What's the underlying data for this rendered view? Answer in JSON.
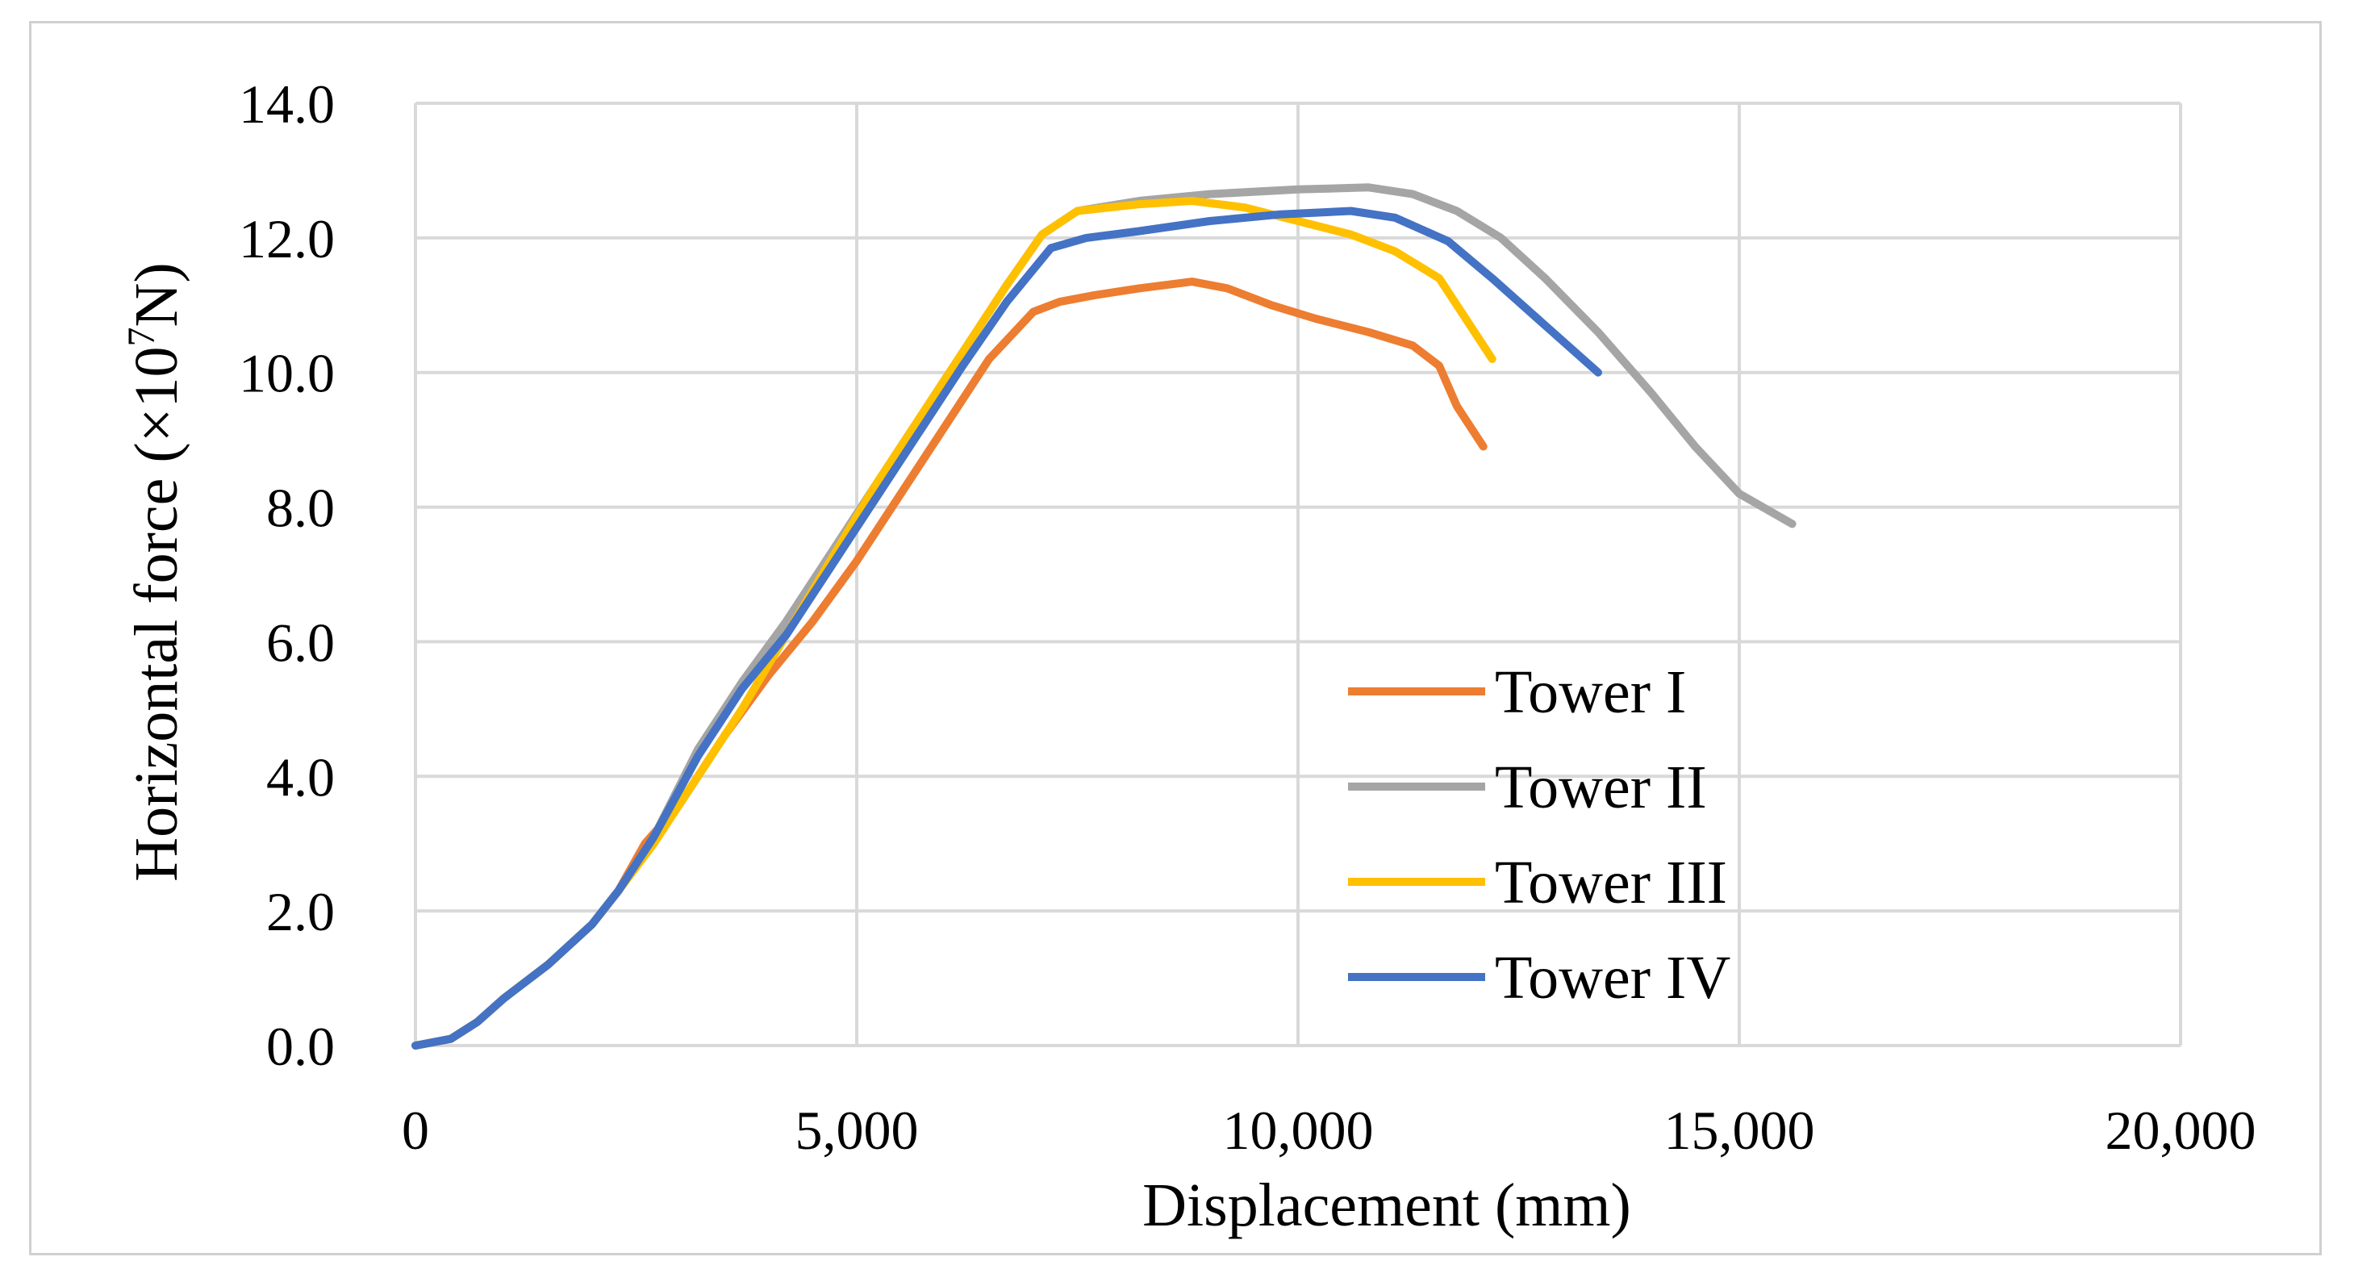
{
  "chart_data": {
    "type": "line",
    "title": "",
    "xlabel": "Displacement (mm)",
    "ylabel_prefix": "Horizontal force (×10",
    "ylabel_sup": "7",
    "ylabel_suffix": "N)",
    "xlim": [
      0,
      20000
    ],
    "ylim": [
      0,
      14
    ],
    "x_ticks": [
      0,
      5000,
      10000,
      15000,
      20000
    ],
    "x_tick_labels": [
      "0",
      "5,000",
      "10,000",
      "15,000",
      "20,000"
    ],
    "y_ticks": [
      0,
      2,
      4,
      6,
      8,
      10,
      12,
      14
    ],
    "y_tick_labels": [
      "0.0",
      "2.0",
      "4.0",
      "6.0",
      "8.0",
      "10.0",
      "12.0",
      "14.0"
    ],
    "grid": true,
    "legend_position": "lower-right",
    "series": [
      {
        "name": "Tower I",
        "color": "#ed7d31",
        "points": [
          [
            0,
            0
          ],
          [
            400,
            0.1
          ],
          [
            700,
            0.35
          ],
          [
            1000,
            0.7
          ],
          [
            1500,
            1.2
          ],
          [
            2000,
            1.8
          ],
          [
            2300,
            2.3
          ],
          [
            2600,
            3.0
          ],
          [
            3000,
            3.6
          ],
          [
            3500,
            4.6
          ],
          [
            4000,
            5.5
          ],
          [
            4500,
            6.3
          ],
          [
            5000,
            7.2
          ],
          [
            5500,
            8.2
          ],
          [
            6000,
            9.2
          ],
          [
            6500,
            10.2
          ],
          [
            7000,
            10.9
          ],
          [
            7300,
            11.05
          ],
          [
            7700,
            11.15
          ],
          [
            8200,
            11.25
          ],
          [
            8800,
            11.35
          ],
          [
            9200,
            11.25
          ],
          [
            9700,
            11.0
          ],
          [
            10200,
            10.8
          ],
          [
            10800,
            10.6
          ],
          [
            11300,
            10.4
          ],
          [
            11600,
            10.1
          ],
          [
            11800,
            9.5
          ],
          [
            12100,
            8.9
          ]
        ]
      },
      {
        "name": "Tower II",
        "color": "#a5a5a5",
        "points": [
          [
            0,
            0
          ],
          [
            400,
            0.1
          ],
          [
            700,
            0.35
          ],
          [
            1000,
            0.7
          ],
          [
            1500,
            1.2
          ],
          [
            2000,
            1.8
          ],
          [
            2300,
            2.3
          ],
          [
            2700,
            3.1
          ],
          [
            3200,
            4.4
          ],
          [
            3700,
            5.4
          ],
          [
            4200,
            6.3
          ],
          [
            4700,
            7.3
          ],
          [
            5200,
            8.3
          ],
          [
            5700,
            9.3
          ],
          [
            6200,
            10.3
          ],
          [
            6700,
            11.3
          ],
          [
            7100,
            12.05
          ],
          [
            7500,
            12.4
          ],
          [
            8200,
            12.55
          ],
          [
            9000,
            12.65
          ],
          [
            10000,
            12.72
          ],
          [
            10800,
            12.75
          ],
          [
            11300,
            12.65
          ],
          [
            11800,
            12.4
          ],
          [
            12300,
            12.0
          ],
          [
            12800,
            11.4
          ],
          [
            13400,
            10.6
          ],
          [
            14000,
            9.7
          ],
          [
            14500,
            8.9
          ],
          [
            15000,
            8.2
          ],
          [
            15600,
            7.75
          ]
        ]
      },
      {
        "name": "Tower III",
        "color": "#ffc000",
        "points": [
          [
            0,
            0
          ],
          [
            400,
            0.1
          ],
          [
            700,
            0.35
          ],
          [
            1000,
            0.7
          ],
          [
            1500,
            1.2
          ],
          [
            2000,
            1.8
          ],
          [
            2300,
            2.3
          ],
          [
            2700,
            3.0
          ],
          [
            3200,
            4.0
          ],
          [
            3700,
            5.0
          ],
          [
            4200,
            6.1
          ],
          [
            4700,
            7.2
          ],
          [
            5200,
            8.3
          ],
          [
            5700,
            9.3
          ],
          [
            6200,
            10.3
          ],
          [
            6700,
            11.3
          ],
          [
            7100,
            12.05
          ],
          [
            7500,
            12.4
          ],
          [
            8200,
            12.5
          ],
          [
            8800,
            12.55
          ],
          [
            9400,
            12.45
          ],
          [
            10000,
            12.25
          ],
          [
            10600,
            12.05
          ],
          [
            11100,
            11.8
          ],
          [
            11600,
            11.4
          ],
          [
            11900,
            10.8
          ],
          [
            12200,
            10.2
          ]
        ]
      },
      {
        "name": "Tower IV",
        "color": "#4472c4",
        "points": [
          [
            0,
            0
          ],
          [
            400,
            0.1
          ],
          [
            700,
            0.35
          ],
          [
            1000,
            0.7
          ],
          [
            1500,
            1.2
          ],
          [
            2000,
            1.8
          ],
          [
            2300,
            2.3
          ],
          [
            2700,
            3.1
          ],
          [
            3200,
            4.3
          ],
          [
            3700,
            5.3
          ],
          [
            4200,
            6.1
          ],
          [
            4700,
            7.1
          ],
          [
            5200,
            8.1
          ],
          [
            5700,
            9.1
          ],
          [
            6200,
            10.1
          ],
          [
            6700,
            11.05
          ],
          [
            7200,
            11.85
          ],
          [
            7600,
            12.0
          ],
          [
            8200,
            12.1
          ],
          [
            9000,
            12.25
          ],
          [
            9800,
            12.35
          ],
          [
            10600,
            12.4
          ],
          [
            11100,
            12.3
          ],
          [
            11700,
            11.95
          ],
          [
            12200,
            11.4
          ],
          [
            12800,
            10.7
          ],
          [
            13400,
            10.0
          ]
        ]
      }
    ]
  }
}
